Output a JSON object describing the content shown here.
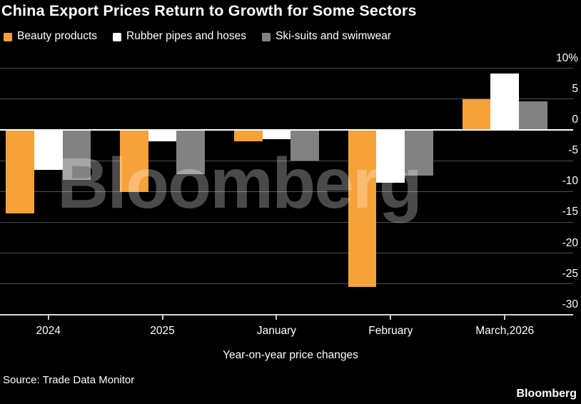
{
  "title": "China Export Prices Return to Growth for Some Sectors",
  "legend": [
    {
      "label": "Beauty products",
      "color": "#F7A139"
    },
    {
      "label": "Rubber pipes and hoses",
      "color": "#FFFFFF"
    },
    {
      "label": "Ski-suits and swimwear",
      "color": "#828282"
    }
  ],
  "chart_data": {
    "type": "bar",
    "categories": [
      "2024",
      "2025",
      "January",
      "February",
      "March,2026"
    ],
    "series": [
      {
        "name": "Beauty products",
        "color": "#F7A139",
        "values": [
          -13.5,
          -10.1,
          -1.8,
          -25.5,
          5.0
        ]
      },
      {
        "name": "Rubber pipes and hoses",
        "color": "#FFFFFF",
        "values": [
          -6.5,
          -1.8,
          -1.5,
          -8.6,
          9.2
        ]
      },
      {
        "name": "Ski-suits and swimwear",
        "color": "#828282",
        "values": [
          -8.1,
          -7.2,
          -5.0,
          -7.4,
          4.6
        ]
      }
    ],
    "ylim": [
      -30,
      10
    ],
    "yticks": [
      {
        "value": 10,
        "label": "10%"
      },
      {
        "value": 5,
        "label": "5"
      },
      {
        "value": 0,
        "label": "0"
      },
      {
        "value": -5,
        "label": "-5"
      },
      {
        "value": -10,
        "label": "-10"
      },
      {
        "value": -15,
        "label": "-15"
      },
      {
        "value": -20,
        "label": "-20"
      },
      {
        "value": -25,
        "label": "-25"
      },
      {
        "value": -30,
        "label": "-30"
      }
    ],
    "xlabel": "Year-on-year price changes",
    "grid": true,
    "legend_position": "top",
    "background": "#000000"
  },
  "watermark": "Bloomberg",
  "source": "Source: Trade Data Monitor",
  "brand": "Bloomberg",
  "colors": {
    "background": "#000000",
    "text": "#FFFFFF",
    "gridline": "#4f4f4f",
    "zero_line": "#FFFFFF",
    "axis_line": "#D9D9D9",
    "watermark": "rgba(255,255,255,0.29)"
  }
}
